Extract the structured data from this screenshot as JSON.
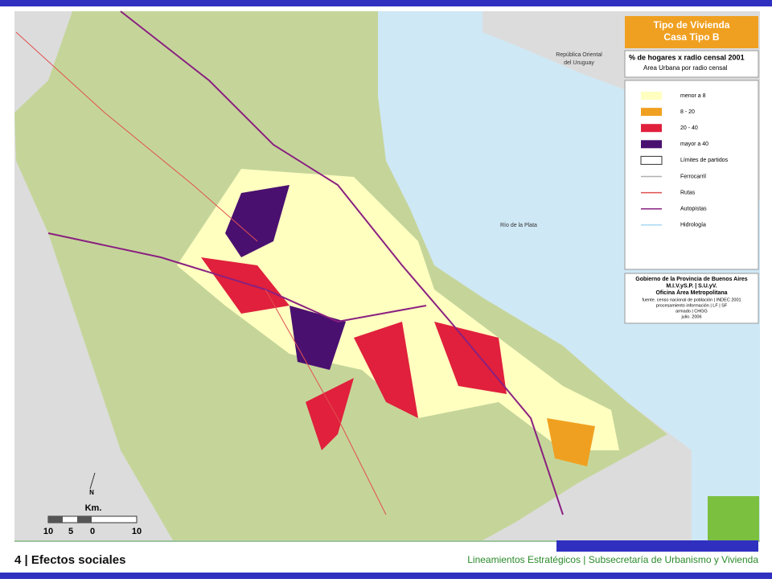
{
  "legend": {
    "title": "Tipo de Vivienda",
    "subtitle": "Casa Tipo B",
    "heading": "% de hogares x radio censal 2001",
    "subheading": "Area Urbana por radio censal",
    "items": [
      {
        "label": "menor a 8",
        "color": "#ffffc0",
        "kind": "box"
      },
      {
        "label": "8 - 20",
        "color": "#f0a020",
        "kind": "box"
      },
      {
        "label": "20 - 40",
        "color": "#e0203c",
        "kind": "box"
      },
      {
        "label": "mayor a 40",
        "color": "#4a1070",
        "kind": "box"
      },
      {
        "label": "Límites de partidos",
        "color": "#ffffff",
        "kind": "box"
      },
      {
        "label": "Ferrocarril",
        "color": "#b0b0b0",
        "kind": "line"
      },
      {
        "label": "Rutas",
        "color": "#e05050",
        "kind": "line"
      },
      {
        "label": "Autopistas",
        "color": "#8a2080",
        "kind": "line"
      },
      {
        "label": "Hidrología",
        "color": "#a8d8f0",
        "kind": "line"
      }
    ]
  },
  "credits": {
    "lines": [
      "Gobierno de la Provincia de Buenos Aires",
      "M.I.V.yS.P. | S.U.yV.",
      "Oficina Área Metropolitana"
    ],
    "notes": [
      "fuente. censo nacional de población | INDEC 2001",
      "procesamiento información | LF | SF",
      "armado | CHGG",
      "julio. 2006"
    ]
  },
  "map": {
    "country": [
      "República Oriental",
      "del Uruguay"
    ],
    "river": "Río de la Plata",
    "north": "N",
    "scale_unit": "Km.",
    "scale_labels": [
      "10",
      "5",
      "0",
      "10"
    ]
  },
  "footer": {
    "section": "4 | Efectos sociales",
    "org": "Lineamientos Estratégicos | Subsecretaría de Urbanismo y Vivienda"
  }
}
